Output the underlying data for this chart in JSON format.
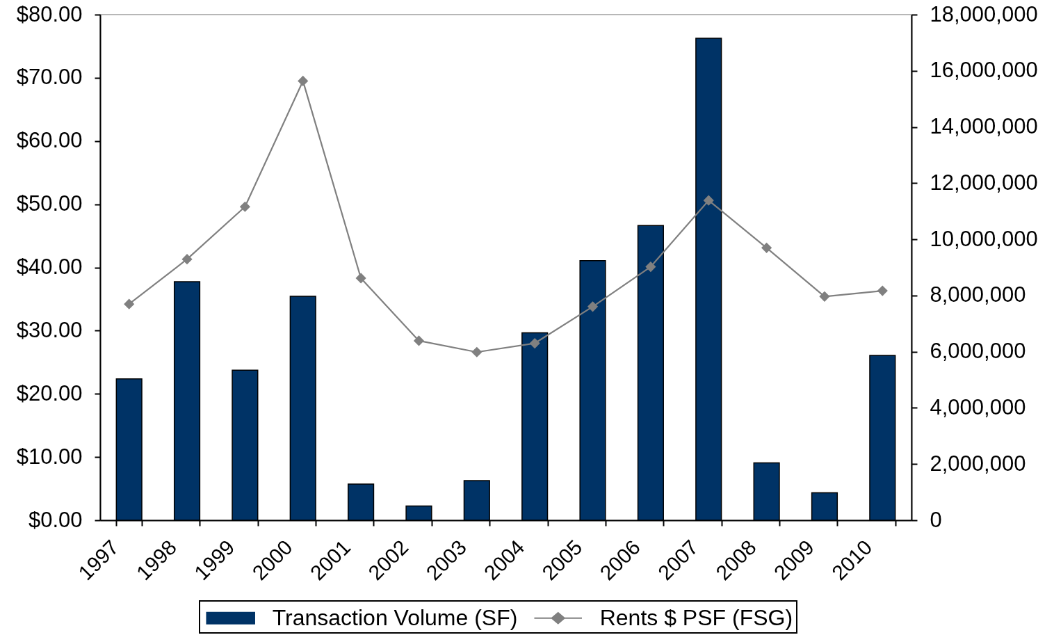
{
  "chart_data": {
    "type": "bar",
    "categories": [
      "1997",
      "1998",
      "1999",
      "2000",
      "2001",
      "2002",
      "2003",
      "2004",
      "2005",
      "2006",
      "2007",
      "2008",
      "2009",
      "2010"
    ],
    "series": [
      {
        "name": "Transaction Volume (SF)",
        "axis": "y2",
        "color": "#003366",
        "values": [
          5030000,
          8490000,
          5340000,
          7970000,
          1290000,
          510000,
          1410000,
          6670000,
          9240000,
          10490000,
          17160000,
          2040000,
          980000,
          5870000
        ]
      },
      {
        "name": "Rents $ PSF (FSG)",
        "type": "line",
        "axis": "y",
        "color": "#808080",
        "values": [
          34.2,
          41.3,
          49.6,
          69.5,
          38.3,
          28.4,
          26.6,
          28.0,
          33.8,
          40.1,
          50.6,
          43.1,
          35.4,
          36.3
        ]
      }
    ],
    "ylim": [
      0,
      80
    ],
    "yticks": [
      {
        "value": 0,
        "label": "$0.00"
      },
      {
        "value": 10,
        "label": "$10.00"
      },
      {
        "value": 20,
        "label": "$20.00"
      },
      {
        "value": 30,
        "label": "$30.00"
      },
      {
        "value": 40,
        "label": "$40.00"
      },
      {
        "value": 50,
        "label": "$50.00"
      },
      {
        "value": 60,
        "label": "$60.00"
      },
      {
        "value": 70,
        "label": "$70.00"
      },
      {
        "value": 80,
        "label": "$80.00"
      }
    ],
    "y2lim": [
      0,
      18000000
    ],
    "y2ticks": [
      0,
      {
        "value": 2000000,
        "label": "2,000,000"
      },
      {
        "value": 4000000,
        "label": "4,000,000"
      },
      {
        "value": 6000000,
        "label": "6,000,000"
      },
      {
        "value": 8000000,
        "label": "8,000,000"
      },
      {
        "value": 10000000,
        "label": "10,000,000"
      },
      {
        "value": 12000000,
        "label": "12,000,000"
      },
      {
        "value": 14000000,
        "label": "14,000,000"
      },
      {
        "value": 16000000,
        "label": "16,000,000"
      },
      {
        "value": 18000000,
        "label": "18,000,000"
      }
    ],
    "legend": "bottom",
    "marker": "diamond",
    "grid": false
  }
}
